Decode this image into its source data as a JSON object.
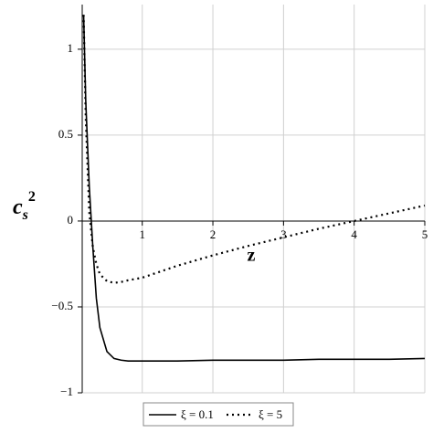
{
  "chart_data": {
    "type": "line",
    "xlabel": "z",
    "ylabel": {
      "base": "c",
      "sub": "s",
      "sup": "2"
    },
    "x": [
      0.17,
      0.2,
      0.25,
      0.3,
      0.35,
      0.4,
      0.5,
      0.6,
      0.7,
      0.8,
      1,
      1.5,
      2,
      2.5,
      3,
      3.5,
      4,
      4.5,
      5
    ],
    "series": [
      {
        "name": "ξ = 0.1",
        "color": "#000000",
        "dash": "solid",
        "values": [
          1.2,
          0.7,
          0.2,
          -0.15,
          -0.45,
          -0.62,
          -0.76,
          -0.8,
          -0.81,
          -0.815,
          -0.815,
          -0.815,
          -0.81,
          -0.81,
          -0.81,
          -0.805,
          -0.805,
          -0.805,
          -0.8
        ]
      },
      {
        "name": "ξ = 5",
        "color": "#000000",
        "dash": "dotted",
        "values": [
          1.2,
          0.6,
          0.05,
          -0.15,
          -0.25,
          -0.31,
          -0.35,
          -0.36,
          -0.355,
          -0.345,
          -0.33,
          -0.26,
          -0.2,
          -0.145,
          -0.095,
          -0.045,
          0.0,
          0.045,
          0.09
        ]
      }
    ],
    "xlim": [
      0.15,
      5
    ],
    "ylim": [
      -1,
      1.26
    ],
    "xticks": [
      1,
      2,
      3,
      4,
      5
    ],
    "yticks": [
      {
        "value": -1,
        "label": "−1"
      },
      {
        "value": -0.5,
        "label": "−0.5"
      },
      0,
      0.5,
      1
    ],
    "grid": true,
    "legend": "bottom"
  }
}
